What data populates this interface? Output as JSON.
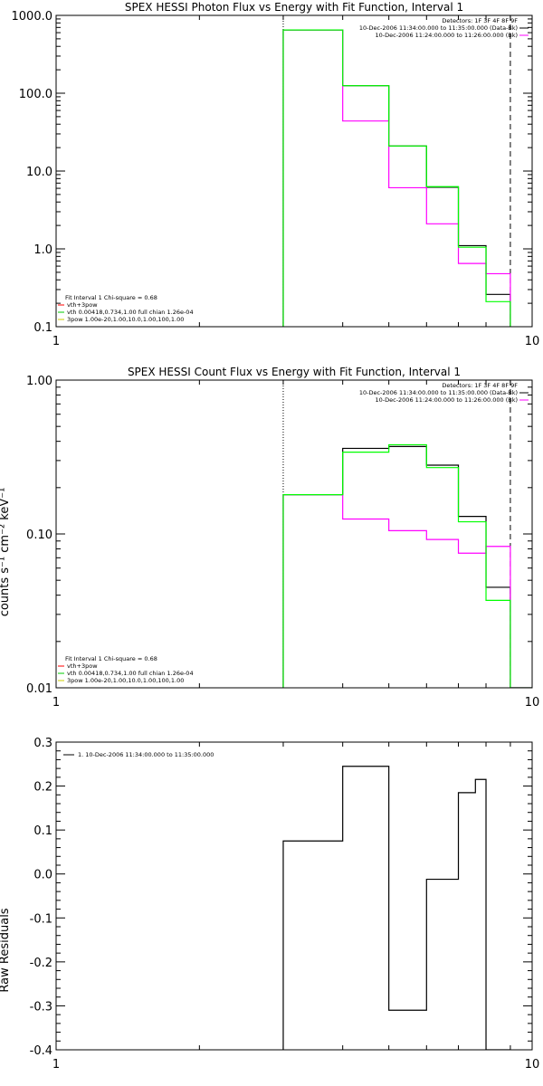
{
  "chart_data": [
    {
      "type": "line",
      "title": "SPEX HESSI Photon Flux vs Energy with Fit Function, Interval 1",
      "ylabel": "",
      "xscale": "log",
      "yscale": "log",
      "xlim": [
        1,
        10
      ],
      "ylim": [
        0.1,
        1000
      ],
      "xticks": [
        {
          "v": 1,
          "label": "1"
        },
        {
          "v": 10,
          "label": "10"
        }
      ],
      "yticks": [
        {
          "v": 0.1,
          "label": "0.1"
        },
        {
          "v": 1,
          "label": "1.0"
        },
        {
          "v": 10,
          "label": "10.0"
        },
        {
          "v": 100,
          "label": "100.0"
        },
        {
          "v": 1000,
          "label": "1000.0"
        }
      ],
      "vlines": [
        {
          "x": 3.0,
          "style": "dotted",
          "color": "#000000"
        },
        {
          "x": 9.0,
          "style": "dashed",
          "color": "#000000"
        }
      ],
      "edges": [
        3.0,
        4.0,
        5.0,
        6.0,
        7.0,
        8.0,
        9.0
      ],
      "series": [
        {
          "color": "#000000",
          "values": [
            650,
            125,
            21,
            6.2,
            1.1,
            0.26
          ]
        },
        {
          "color": "#ff00ff",
          "values": [
            650,
            44,
            6.1,
            2.1,
            0.65,
            0.48
          ]
        },
        {
          "color": "#00ff00",
          "values": [
            650,
            125,
            21,
            6.3,
            1.05,
            0.21
          ]
        }
      ],
      "legend_top": [
        {
          "text": "Detectors: 1F 3F 4F 8F 9F",
          "color": ""
        },
        {
          "text": "10-Dec-2006 11:34:00.000 to 11:35:00.000 (Data-Bk)",
          "color": "#000000"
        },
        {
          "text": "10-Dec-2006 11:24:00.000 to 11:26:00.000 (Bk)",
          "color": "#ff00ff"
        }
      ],
      "legend_bottom": [
        {
          "text": "Fit Interval 1    Chi-square = 0.68",
          "color": ""
        },
        {
          "text": "vth+3pow",
          "color": "#ff0000"
        },
        {
          "text": "vth 0.00418,0.734,1.00  full chian 1.26e-04",
          "color": "#00cc00"
        },
        {
          "text": "3pow 1.00e-20,1.00,10.0,1.00,100,1.00",
          "color": "#cccc00"
        }
      ]
    },
    {
      "type": "line",
      "title": "SPEX HESSI Count Flux vs Energy with Fit Function, Interval 1",
      "ylabel": "counts s⁻¹ cm⁻² keV⁻¹",
      "xscale": "log",
      "yscale": "log",
      "xlim": [
        1,
        10
      ],
      "ylim": [
        0.01,
        1.0
      ],
      "xticks": [
        {
          "v": 1,
          "label": "1"
        },
        {
          "v": 10,
          "label": "10"
        }
      ],
      "yticks": [
        {
          "v": 0.01,
          "label": "0.01"
        },
        {
          "v": 0.1,
          "label": "0.10"
        },
        {
          "v": 1,
          "label": "1.00"
        }
      ],
      "vlines": [
        {
          "x": 3.0,
          "style": "dotted",
          "color": "#000000"
        },
        {
          "x": 9.0,
          "style": "dashed",
          "color": "#000000"
        }
      ],
      "edges": [
        3.0,
        4.0,
        5.0,
        6.0,
        7.0,
        8.0,
        9.0,
        10.0
      ],
      "series": [
        {
          "color": "#000000",
          "values": [
            0.18,
            0.36,
            0.37,
            0.28,
            0.13,
            0.045,
            0.0001
          ]
        },
        {
          "color": "#ff00ff",
          "values": [
            0.18,
            0.125,
            0.105,
            0.092,
            0.075,
            0.083,
            0.0001
          ]
        },
        {
          "color": "#00ff00",
          "values": [
            0.18,
            0.34,
            0.38,
            0.27,
            0.12,
            0.037,
            0.01
          ]
        }
      ],
      "legend_top": [
        {
          "text": "Detectors: 1F 3F 4F 8F 9F",
          "color": ""
        },
        {
          "text": "10-Dec-2006 11:34:00.000 to 11:35:00.000 (Data-Bk)",
          "color": "#000000"
        },
        {
          "text": "10-Dec-2006 11:24:00.000 to 11:26:00.000 (Bk)",
          "color": "#ff00ff"
        }
      ],
      "legend_bottom": [
        {
          "text": "Fit Interval 1    Chi-square = 0.68",
          "color": ""
        },
        {
          "text": "vth+3pow",
          "color": "#ff0000"
        },
        {
          "text": "vth 0.00418,0.734,1.00  full chian 1.26e-04",
          "color": "#00cc00"
        },
        {
          "text": "3pow 1.00e-20,1.00,10.0,1.00,100,1.00",
          "color": "#cccc00"
        }
      ]
    },
    {
      "type": "line",
      "title": "",
      "ylabel": "Raw Residuals",
      "xscale": "log",
      "yscale": "linear",
      "xlim": [
        1,
        10
      ],
      "ylim": [
        -0.4,
        0.3
      ],
      "xticks": [
        {
          "v": 1,
          "label": "1"
        },
        {
          "v": 10,
          "label": "10"
        }
      ],
      "yticks": [
        {
          "v": -0.4,
          "label": "-0.4"
        },
        {
          "v": -0.3,
          "label": "-0.3"
        },
        {
          "v": -0.2,
          "label": "-0.2"
        },
        {
          "v": -0.1,
          "label": "-0.1"
        },
        {
          "v": 0,
          "label": "0.0"
        },
        {
          "v": 0.1,
          "label": "0.1"
        },
        {
          "v": 0.2,
          "label": "0.2"
        },
        {
          "v": 0.3,
          "label": "0.3"
        }
      ],
      "vlines": [],
      "edges": [
        3.0,
        4.0,
        5.0,
        6.0,
        7.0,
        7.6,
        8.0,
        9.0
      ],
      "series": [
        {
          "color": "#000000",
          "values": [
            0.075,
            0.245,
            -0.31,
            -0.012,
            0.185,
            0.215,
            -0.4
          ]
        }
      ],
      "legend_top": [
        {
          "text": "1. 10-Dec-2006 11:34:00.000 to 11:35:00.000",
          "color": "#000000"
        }
      ],
      "legend_bottom": []
    }
  ]
}
